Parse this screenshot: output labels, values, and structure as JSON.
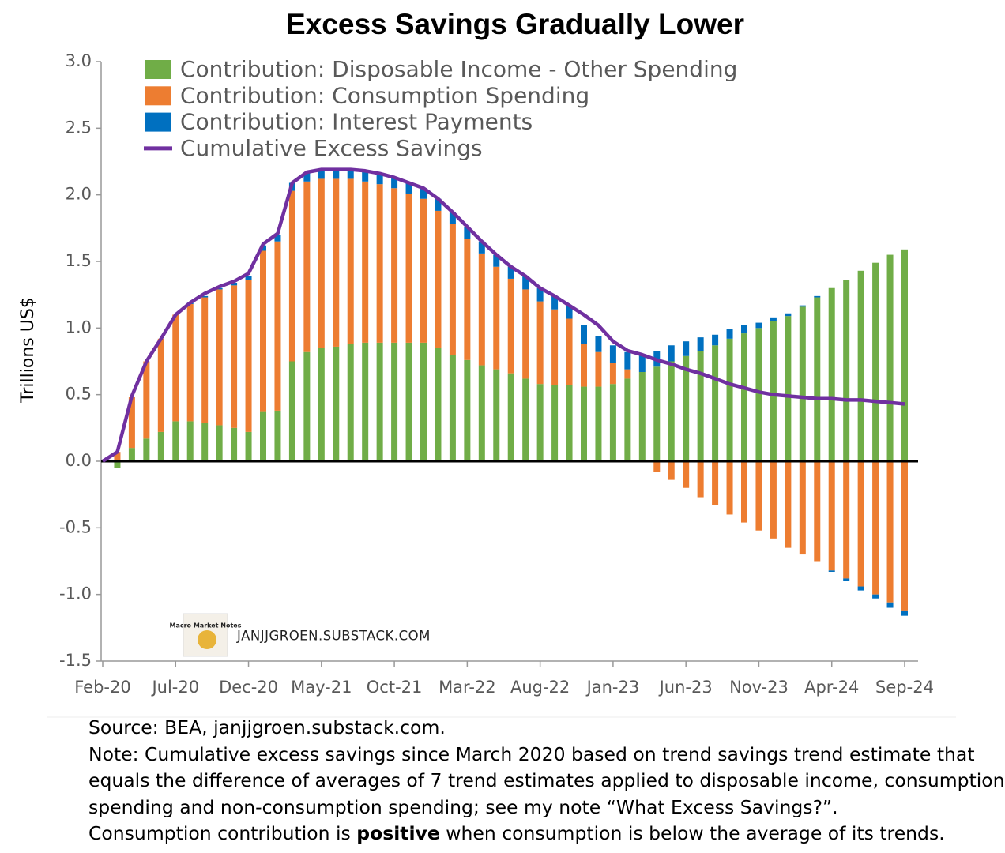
{
  "chart_data": {
    "type": "bar",
    "stacked": true,
    "title": "Excess Savings Gradually Lower",
    "y_label": "Trillions US$",
    "categories": [
      "Feb-20",
      null,
      null,
      null,
      null,
      "Jul-20",
      null,
      null,
      null,
      null,
      "Dec-20",
      null,
      null,
      null,
      null,
      "May-21",
      null,
      null,
      null,
      null,
      "Oct-21",
      null,
      null,
      null,
      null,
      "Mar-22",
      null,
      null,
      null,
      null,
      "Aug-22",
      null,
      null,
      null,
      null,
      "Jan-23",
      null,
      null,
      null,
      null,
      "Jun-23",
      null,
      null,
      null,
      null,
      "Nov-23",
      null,
      null,
      null,
      null,
      "Apr-24",
      null,
      null,
      null,
      null,
      "Sep-24"
    ],
    "ylim": [
      -1.5,
      3.0
    ],
    "yticks": [
      {
        "value": -1.5,
        "label": "-1.5"
      },
      {
        "value": -1.0,
        "label": "-1.0"
      },
      {
        "value": -0.5,
        "label": "-0.5"
      },
      {
        "value": 0,
        "label": "0.0"
      },
      {
        "value": 0.5,
        "label": "0.5"
      },
      {
        "value": 1.0,
        "label": "1.0"
      },
      {
        "value": 1.5,
        "label": "1.5"
      },
      {
        "value": 2.0,
        "label": "2.0"
      },
      {
        "value": 2.5,
        "label": "2.5"
      },
      {
        "value": 3.0,
        "label": "3.0"
      }
    ],
    "legend": "upper left",
    "series": [
      {
        "name": "Contribution: Disposable Income - Other Spending",
        "color": "#70ad47",
        "type": "bar",
        "values": [
          0,
          -0.05,
          0.1,
          0.17,
          0.22,
          0.3,
          0.3,
          0.29,
          0.27,
          0.25,
          0.22,
          0.37,
          0.38,
          0.75,
          0.82,
          0.85,
          0.86,
          0.88,
          0.89,
          0.89,
          0.89,
          0.89,
          0.89,
          0.85,
          0.8,
          0.76,
          0.72,
          0.69,
          0.66,
          0.62,
          0.58,
          0.57,
          0.57,
          0.56,
          0.56,
          0.58,
          0.62,
          0.67,
          0.71,
          0.75,
          0.79,
          0.83,
          0.87,
          0.92,
          0.96,
          1.0,
          1.05,
          1.09,
          1.16,
          1.23,
          1.3,
          1.36,
          1.43,
          1.49,
          1.55,
          1.59
        ]
      },
      {
        "name": "Contribution: Consumption Spending",
        "color": "#ed7d31",
        "type": "bar",
        "values": [
          0,
          0.07,
          0.38,
          0.58,
          0.7,
          0.8,
          0.88,
          0.94,
          1.02,
          1.07,
          1.14,
          1.21,
          1.27,
          1.28,
          1.28,
          1.27,
          1.26,
          1.24,
          1.21,
          1.19,
          1.16,
          1.12,
          1.08,
          1.03,
          0.98,
          0.91,
          0.84,
          0.77,
          0.71,
          0.67,
          0.62,
          0.57,
          0.5,
          0.32,
          0.26,
          0.16,
          0.07,
          0,
          -0.08,
          -0.14,
          -0.2,
          -0.27,
          -0.33,
          -0.4,
          -0.46,
          -0.52,
          -0.58,
          -0.65,
          -0.7,
          -0.75,
          -0.82,
          -0.88,
          -0.94,
          -1.0,
          -1.06,
          -1.12
        ]
      },
      {
        "name": "Contribution: Interest Payments",
        "color": "#0070c0",
        "type": "bar",
        "values": [
          0,
          0,
          0,
          0,
          0,
          0,
          0.01,
          0.01,
          0.01,
          0.02,
          0.03,
          0.04,
          0.05,
          0.06,
          0.07,
          0.07,
          0.07,
          0.07,
          0.08,
          0.08,
          0.08,
          0.08,
          0.08,
          0.09,
          0.09,
          0.09,
          0.09,
          0.09,
          0.09,
          0.1,
          0.1,
          0.1,
          0.1,
          0.14,
          0.12,
          0.13,
          0.13,
          0.13,
          0.12,
          0.12,
          0.11,
          0.1,
          0.08,
          0.07,
          0.06,
          0.04,
          0.03,
          0.02,
          0.01,
          0.01,
          -0.01,
          -0.02,
          -0.03,
          -0.03,
          -0.04,
          -0.04
        ]
      },
      {
        "name": "Cumulative Excess Savings",
        "color": "#7030a0",
        "type": "line",
        "values": [
          0,
          0.07,
          0.49,
          0.75,
          0.92,
          1.1,
          1.19,
          1.26,
          1.31,
          1.35,
          1.41,
          1.63,
          1.71,
          2.09,
          2.17,
          2.19,
          2.19,
          2.19,
          2.18,
          2.16,
          2.13,
          2.09,
          2.05,
          1.97,
          1.87,
          1.76,
          1.65,
          1.55,
          1.46,
          1.39,
          1.3,
          1.24,
          1.17,
          1.1,
          1.02,
          0.9,
          0.83,
          0.8,
          0.76,
          0.73,
          0.69,
          0.66,
          0.62,
          0.58,
          0.55,
          0.52,
          0.5,
          0.49,
          0.48,
          0.47,
          0.47,
          0.46,
          0.46,
          0.45,
          0.44,
          0.43
        ]
      }
    ],
    "logo_text": "Macro Market Notes",
    "watermark": "JANJJGROEN.SUBSTACK.COM",
    "source": "Source: BEA, janjjgroen.substack.com.",
    "note_lines": [
      "Note: Cumulative excess savings since March 2020 based on trend savings trend estimate that",
      "equals the difference of averages of 7 trend estimates applied to disposable income, consumption",
      "spending and non-consumption spending; see my note “What Excess Savings?”."
    ],
    "last_line": [
      "Consumption contribution is ",
      "positive",
      " when consumption is below the average of its trends."
    ]
  }
}
